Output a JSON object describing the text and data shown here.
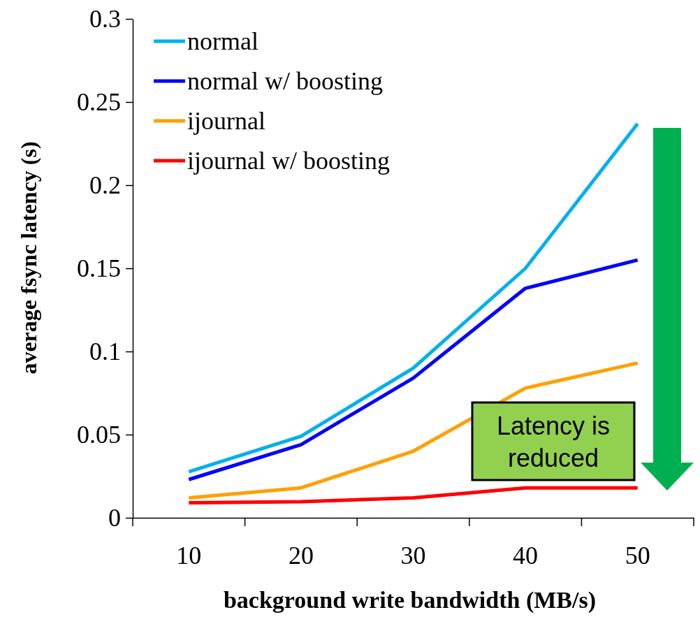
{
  "chart_data": {
    "type": "line",
    "xlabel": "background write bandwidth (MB/s)",
    "ylabel": "average fsync latency (s)",
    "categories": [
      "10",
      "20",
      "30",
      "40",
      "50"
    ],
    "series": [
      {
        "name": "normal",
        "color": "#00b0f0",
        "values": [
          0.0277,
          0.049,
          0.09,
          0.15,
          0.237
        ]
      },
      {
        "name": "normal w/ boosting",
        "color": "#0000ff",
        "values": [
          0.023,
          0.044,
          0.084,
          0.138,
          0.155
        ]
      },
      {
        "name": "ijournal",
        "color": "#ffa000",
        "values": [
          0.012,
          0.018,
          0.04,
          0.078,
          0.093
        ]
      },
      {
        "name": "ijournal w/ boosting",
        "color": "#ff0000",
        "values": [
          0.009,
          0.0097,
          0.012,
          0.018,
          0.018
        ]
      }
    ],
    "ylim": [
      0,
      0.3
    ],
    "yticks": [
      0,
      0.05,
      0.1,
      0.15,
      0.2,
      0.25,
      0.3
    ],
    "legend": "top left",
    "grid": false,
    "marker": "none",
    "line_style": "solid",
    "annotations": [
      "Latency is reduced"
    ]
  }
}
